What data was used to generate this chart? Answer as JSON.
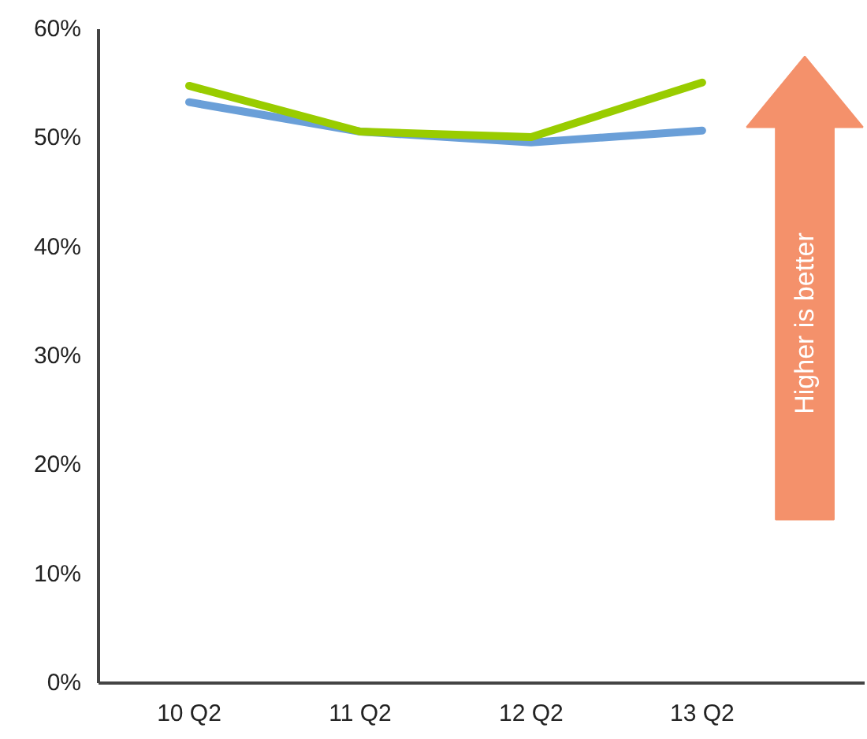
{
  "chart_data": {
    "type": "line",
    "categories": [
      "10 Q2",
      "11 Q2",
      "12 Q2",
      "13 Q2"
    ],
    "series": [
      {
        "color": "#6a9fd8",
        "values": [
          53.3,
          50.6,
          49.6,
          50.7
        ]
      },
      {
        "color": "#99cc00",
        "values": [
          54.8,
          50.6,
          50.1,
          55.1
        ]
      }
    ],
    "ylim": [
      0,
      60
    ],
    "yticks": [
      {
        "value": 0,
        "label": "0%"
      },
      {
        "value": 10,
        "label": "10%"
      },
      {
        "value": 20,
        "label": "20%"
      },
      {
        "value": 30,
        "label": "30%"
      },
      {
        "value": 40,
        "label": "40%"
      },
      {
        "value": 50,
        "label": "50%"
      },
      {
        "value": 60,
        "label": "60%"
      }
    ],
    "grid": false,
    "marker": "none",
    "line_style": "solid",
    "annotations": [
      "Higher is better"
    ]
  }
}
